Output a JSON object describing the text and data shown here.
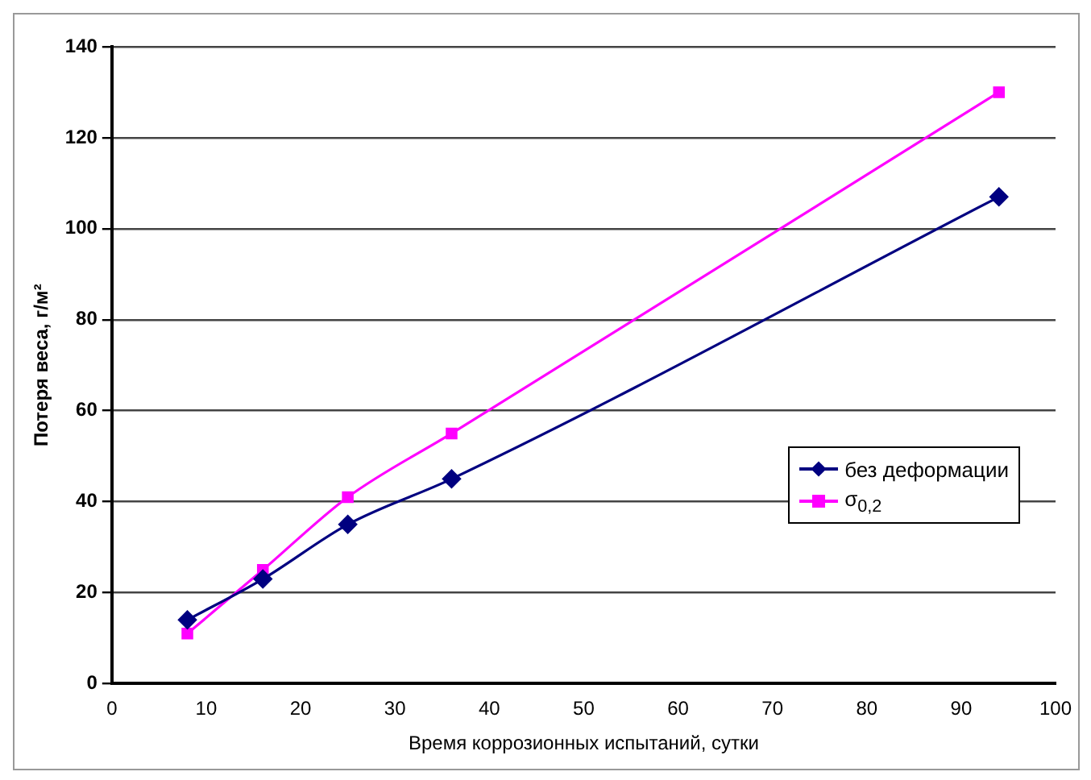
{
  "chart_data": {
    "type": "line",
    "xlabel": "Время коррозионных испытаний, сутки",
    "ylabel": "Потеря веса, г/м²",
    "xlim": [
      0,
      100
    ],
    "xticks": [
      0,
      10,
      20,
      30,
      40,
      50,
      60,
      70,
      80,
      90,
      100
    ],
    "ylim": [
      0,
      140
    ],
    "yticks": [
      0,
      20,
      40,
      60,
      80,
      100,
      120,
      140
    ],
    "grid": "y",
    "legend": "right",
    "series": [
      {
        "name": "без деформации",
        "color": "#000080",
        "marker": "diamond",
        "x": [
          8,
          16,
          25,
          36,
          94
        ],
        "values": [
          14,
          23,
          35,
          45,
          107
        ]
      },
      {
        "name": "σ$_{0,2}$",
        "color": "#ff00ff",
        "marker": "square",
        "x": [
          8,
          16,
          25,
          36,
          94
        ],
        "values": [
          11,
          25,
          41,
          55,
          130
        ]
      }
    ]
  }
}
